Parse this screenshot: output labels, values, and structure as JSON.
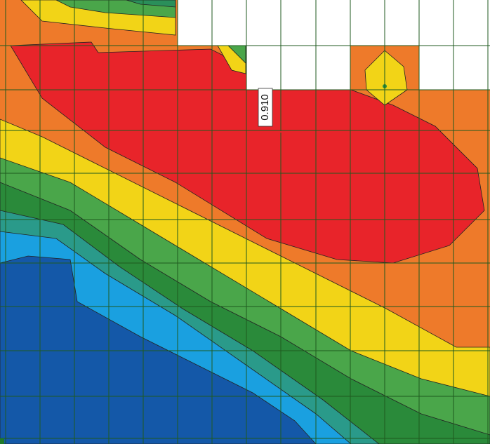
{
  "annotation": {
    "text": "0.910"
  }
}
